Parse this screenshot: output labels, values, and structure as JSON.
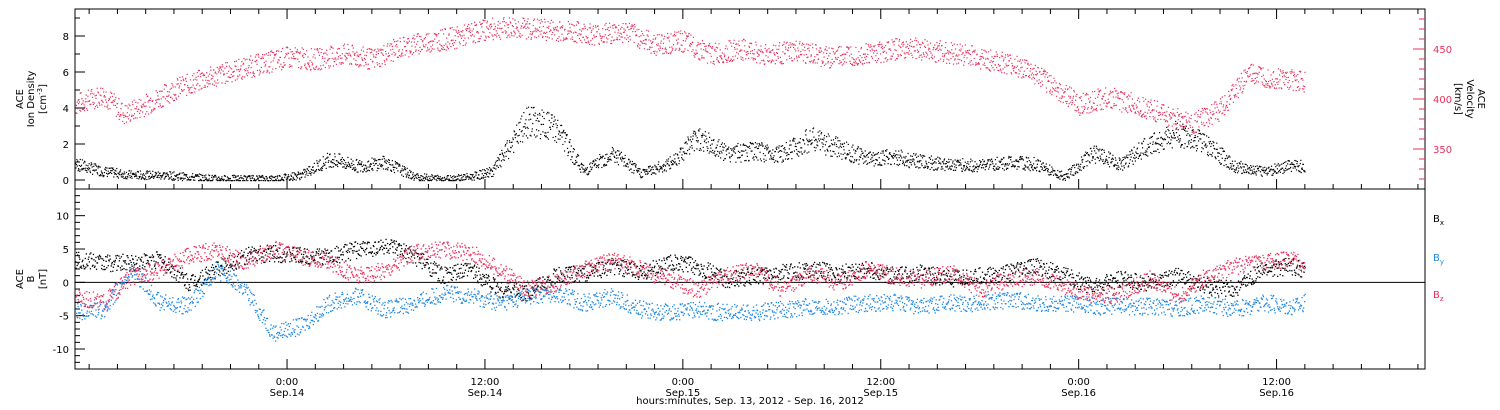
{
  "chart_data": [
    {
      "type": "scatter",
      "panel": "top",
      "left_axis_label_lines": [
        "ACE",
        "Ion Density"
      ],
      "left_axis_units": "[cm",
      "left_axis_units_sup": "-3",
      "left_axis_units_close": "]",
      "right_axis_label_lines": [
        "ACE",
        "Velocity"
      ],
      "right_axis_units": "[km/s]",
      "ylim_left": [
        -0.5,
        9.5
      ],
      "ylim_right": [
        310,
        490
      ],
      "left_ticks": [
        "0",
        "2",
        "4",
        "6",
        "8"
      ],
      "right_ticks": [
        "350",
        "400",
        "450"
      ],
      "colors": {
        "density": "#000000",
        "velocity": "#e8325c"
      },
      "density_profile": [
        {
          "t": 0.0,
          "y": 0.9
        },
        {
          "t": 2.0,
          "y": 0.5
        },
        {
          "t": 4.0,
          "y": 0.3
        },
        {
          "t": 6.0,
          "y": 0.3
        },
        {
          "t": 8.0,
          "y": 0.2
        },
        {
          "t": 10.0,
          "y": 0.1
        },
        {
          "t": 12.0,
          "y": 0.1
        },
        {
          "t": 14.0,
          "y": 0.1
        },
        {
          "t": 16.0,
          "y": 0.3
        },
        {
          "t": 18.0,
          "y": 1.2
        },
        {
          "t": 20.0,
          "y": 0.8
        },
        {
          "t": 22.0,
          "y": 1.0
        },
        {
          "t": 24.0,
          "y": 0.2
        },
        {
          "t": 26.0,
          "y": 0.1
        },
        {
          "t": 28.0,
          "y": 0.2
        },
        {
          "t": 29.5,
          "y": 0.5
        },
        {
          "t": 32.0,
          "y": 3.3
        },
        {
          "t": 34.0,
          "y": 2.9
        },
        {
          "t": 36.0,
          "y": 0.5
        },
        {
          "t": 38.0,
          "y": 1.5
        },
        {
          "t": 40.0,
          "y": 0.4
        },
        {
          "t": 42.0,
          "y": 0.9
        },
        {
          "t": 44.0,
          "y": 2.4
        },
        {
          "t": 46.0,
          "y": 1.5
        },
        {
          "t": 48.0,
          "y": 1.6
        },
        {
          "t": 50.0,
          "y": 1.5
        },
        {
          "t": 52.0,
          "y": 2.3
        },
        {
          "t": 54.0,
          "y": 1.8
        },
        {
          "t": 56.0,
          "y": 1.2
        },
        {
          "t": 58.0,
          "y": 1.3
        },
        {
          "t": 60.0,
          "y": 1.0
        },
        {
          "t": 62.0,
          "y": 0.9
        },
        {
          "t": 64.0,
          "y": 0.8
        },
        {
          "t": 66.0,
          "y": 1.0
        },
        {
          "t": 68.0,
          "y": 0.9
        },
        {
          "t": 70.0,
          "y": 0.2
        },
        {
          "t": 72.0,
          "y": 1.5
        },
        {
          "t": 74.0,
          "y": 0.9
        },
        {
          "t": 76.0,
          "y": 2.0
        },
        {
          "t": 78.0,
          "y": 2.6
        },
        {
          "t": 80.0,
          "y": 2.0
        },
        {
          "t": 82.0,
          "y": 0.8
        },
        {
          "t": 84.0,
          "y": 0.5
        },
        {
          "t": 86.0,
          "y": 0.8
        },
        {
          "t": 87.0,
          "y": 0.8
        }
      ],
      "velocity_profile": [
        {
          "t": 0.0,
          "v": 395
        },
        {
          "t": 2.0,
          "v": 405
        },
        {
          "t": 3.5,
          "v": 385
        },
        {
          "t": 5.0,
          "v": 395
        },
        {
          "t": 7.0,
          "v": 410
        },
        {
          "t": 9.0,
          "v": 420
        },
        {
          "t": 11.0,
          "v": 428
        },
        {
          "t": 13.0,
          "v": 435
        },
        {
          "t": 15.0,
          "v": 442
        },
        {
          "t": 17.0,
          "v": 440
        },
        {
          "t": 19.0,
          "v": 445
        },
        {
          "t": 21.0,
          "v": 440
        },
        {
          "t": 23.0,
          "v": 452
        },
        {
          "t": 25.0,
          "v": 458
        },
        {
          "t": 27.0,
          "v": 462
        },
        {
          "t": 29.0,
          "v": 470
        },
        {
          "t": 31.0,
          "v": 472
        },
        {
          "t": 33.0,
          "v": 470
        },
        {
          "t": 35.0,
          "v": 468
        },
        {
          "t": 37.0,
          "v": 465
        },
        {
          "t": 39.0,
          "v": 468
        },
        {
          "t": 41.0,
          "v": 455
        },
        {
          "t": 43.0,
          "v": 458
        },
        {
          "t": 45.0,
          "v": 445
        },
        {
          "t": 47.0,
          "v": 450
        },
        {
          "t": 49.0,
          "v": 445
        },
        {
          "t": 51.0,
          "v": 448
        },
        {
          "t": 53.0,
          "v": 442
        },
        {
          "t": 55.0,
          "v": 445
        },
        {
          "t": 57.0,
          "v": 448
        },
        {
          "t": 59.0,
          "v": 452
        },
        {
          "t": 61.0,
          "v": 448
        },
        {
          "t": 63.0,
          "v": 445
        },
        {
          "t": 65.0,
          "v": 438
        },
        {
          "t": 67.0,
          "v": 432
        },
        {
          "t": 69.0,
          "v": 415
        },
        {
          "t": 71.0,
          "v": 395
        },
        {
          "t": 73.0,
          "v": 402
        },
        {
          "t": 75.0,
          "v": 395
        },
        {
          "t": 77.0,
          "v": 385
        },
        {
          "t": 79.0,
          "v": 375
        },
        {
          "t": 81.0,
          "v": 390
        },
        {
          "t": 83.0,
          "v": 425
        },
        {
          "t": 85.0,
          "v": 420
        },
        {
          "t": 87.0,
          "v": 418
        }
      ]
    },
    {
      "type": "scatter",
      "panel": "bottom",
      "left_axis_label_lines": [
        "ACE",
        "B"
      ],
      "left_axis_units": "[nT]",
      "ylim": [
        -13,
        14
      ],
      "ticks": [
        "-10",
        "-5",
        "0",
        "5",
        "10"
      ],
      "series": [
        {
          "name": "B",
          "subscript": "x",
          "color": "#000000",
          "profile": [
            {
              "t": 0.0,
              "v": 3.5
            },
            {
              "t": 2.0,
              "v": 3.0
            },
            {
              "t": 4.0,
              "v": 3.0
            },
            {
              "t": 6.0,
              "v": 3.5
            },
            {
              "t": 8.0,
              "v": 0.0
            },
            {
              "t": 10.0,
              "v": 2.0
            },
            {
              "t": 12.0,
              "v": 4.0
            },
            {
              "t": 14.0,
              "v": 4.5
            },
            {
              "t": 16.0,
              "v": 4.0
            },
            {
              "t": 18.0,
              "v": 4.0
            },
            {
              "t": 20.0,
              "v": 5.0
            },
            {
              "t": 22.0,
              "v": 5.5
            },
            {
              "t": 24.0,
              "v": 4.0
            },
            {
              "t": 26.0,
              "v": 1.0
            },
            {
              "t": 28.0,
              "v": 2.0
            },
            {
              "t": 30.0,
              "v": -1.0
            },
            {
              "t": 32.0,
              "v": -1.5
            },
            {
              "t": 34.0,
              "v": 1.0
            },
            {
              "t": 36.0,
              "v": 1.5
            },
            {
              "t": 38.0,
              "v": 2.5
            },
            {
              "t": 40.0,
              "v": 1.5
            },
            {
              "t": 42.0,
              "v": 3.0
            },
            {
              "t": 44.0,
              "v": 2.5
            },
            {
              "t": 46.0,
              "v": 0.5
            },
            {
              "t": 48.0,
              "v": 1.0
            },
            {
              "t": 50.0,
              "v": 1.5
            },
            {
              "t": 52.0,
              "v": 2.0
            },
            {
              "t": 54.0,
              "v": 1.5
            },
            {
              "t": 56.0,
              "v": 2.0
            },
            {
              "t": 58.0,
              "v": 1.0
            },
            {
              "t": 60.0,
              "v": 1.5
            },
            {
              "t": 62.0,
              "v": 0.5
            },
            {
              "t": 64.0,
              "v": 1.0
            },
            {
              "t": 66.0,
              "v": 1.5
            },
            {
              "t": 68.0,
              "v": 2.5
            },
            {
              "t": 70.0,
              "v": 1.0
            },
            {
              "t": 72.0,
              "v": -0.5
            },
            {
              "t": 74.0,
              "v": 0.5
            },
            {
              "t": 76.0,
              "v": 0.0
            },
            {
              "t": 78.0,
              "v": 1.0
            },
            {
              "t": 80.0,
              "v": -0.5
            },
            {
              "t": 82.0,
              "v": -1.0
            },
            {
              "t": 84.0,
              "v": 2.0
            },
            {
              "t": 86.0,
              "v": 2.5
            },
            {
              "t": 87.0,
              "v": 2.0
            }
          ]
        },
        {
          "name": "B",
          "subscript": "y",
          "color": "#1e88e5",
          "profile": [
            {
              "t": 0.0,
              "v": -4.5
            },
            {
              "t": 2.0,
              "v": -4.0
            },
            {
              "t": 4.0,
              "v": 2.0
            },
            {
              "t": 6.0,
              "v": -3.0
            },
            {
              "t": 8.0,
              "v": -3.5
            },
            {
              "t": 10.0,
              "v": 2.0
            },
            {
              "t": 12.0,
              "v": -1.0
            },
            {
              "t": 14.0,
              "v": -7.5
            },
            {
              "t": 16.0,
              "v": -6.5
            },
            {
              "t": 18.0,
              "v": -3.0
            },
            {
              "t": 20.0,
              "v": -2.0
            },
            {
              "t": 22.0,
              "v": -4.0
            },
            {
              "t": 24.0,
              "v": -3.0
            },
            {
              "t": 26.0,
              "v": -1.5
            },
            {
              "t": 28.0,
              "v": -2.0
            },
            {
              "t": 30.0,
              "v": -3.0
            },
            {
              "t": 32.0,
              "v": -2.0
            },
            {
              "t": 34.0,
              "v": -1.5
            },
            {
              "t": 36.0,
              "v": -3.0
            },
            {
              "t": 38.0,
              "v": -2.0
            },
            {
              "t": 40.0,
              "v": -4.0
            },
            {
              "t": 42.0,
              "v": -4.5
            },
            {
              "t": 44.0,
              "v": -4.0
            },
            {
              "t": 46.0,
              "v": -4.5
            },
            {
              "t": 48.0,
              "v": -4.5
            },
            {
              "t": 50.0,
              "v": -4.0
            },
            {
              "t": 52.0,
              "v": -3.5
            },
            {
              "t": 54.0,
              "v": -3.5
            },
            {
              "t": 56.0,
              "v": -3.0
            },
            {
              "t": 58.0,
              "v": -3.0
            },
            {
              "t": 60.0,
              "v": -3.5
            },
            {
              "t": 62.0,
              "v": -3.0
            },
            {
              "t": 64.0,
              "v": -3.0
            },
            {
              "t": 66.0,
              "v": -2.5
            },
            {
              "t": 68.0,
              "v": -3.0
            },
            {
              "t": 70.0,
              "v": -3.0
            },
            {
              "t": 72.0,
              "v": -3.5
            },
            {
              "t": 74.0,
              "v": -3.5
            },
            {
              "t": 76.0,
              "v": -3.5
            },
            {
              "t": 78.0,
              "v": -4.0
            },
            {
              "t": 80.0,
              "v": -3.0
            },
            {
              "t": 82.0,
              "v": -4.0
            },
            {
              "t": 84.0,
              "v": -3.0
            },
            {
              "t": 86.0,
              "v": -3.5
            },
            {
              "t": 87.0,
              "v": -3.0
            }
          ]
        },
        {
          "name": "B",
          "subscript": "z",
          "color": "#e8325c",
          "profile": [
            {
              "t": 0.0,
              "v": -2.0
            },
            {
              "t": 2.0,
              "v": -3.0
            },
            {
              "t": 4.0,
              "v": 1.0
            },
            {
              "t": 6.0,
              "v": 2.0
            },
            {
              "t": 8.0,
              "v": 4.0
            },
            {
              "t": 10.0,
              "v": 5.0
            },
            {
              "t": 12.0,
              "v": 3.0
            },
            {
              "t": 14.0,
              "v": 5.0
            },
            {
              "t": 16.0,
              "v": 4.0
            },
            {
              "t": 18.0,
              "v": 3.0
            },
            {
              "t": 20.0,
              "v": 1.0
            },
            {
              "t": 22.0,
              "v": 2.0
            },
            {
              "t": 24.0,
              "v": 4.5
            },
            {
              "t": 26.0,
              "v": 5.0
            },
            {
              "t": 28.0,
              "v": 4.5
            },
            {
              "t": 30.0,
              "v": 2.0
            },
            {
              "t": 32.0,
              "v": -1.0
            },
            {
              "t": 34.0,
              "v": 0.0
            },
            {
              "t": 36.0,
              "v": 2.0
            },
            {
              "t": 38.0,
              "v": 3.5
            },
            {
              "t": 40.0,
              "v": 2.0
            },
            {
              "t": 42.0,
              "v": 0.5
            },
            {
              "t": 44.0,
              "v": -1.0
            },
            {
              "t": 46.0,
              "v": 1.0
            },
            {
              "t": 48.0,
              "v": 2.0
            },
            {
              "t": 50.0,
              "v": -1.0
            },
            {
              "t": 52.0,
              "v": 1.5
            },
            {
              "t": 54.0,
              "v": 0.0
            },
            {
              "t": 56.0,
              "v": 2.0
            },
            {
              "t": 58.0,
              "v": 1.0
            },
            {
              "t": 60.0,
              "v": 0.5
            },
            {
              "t": 62.0,
              "v": 1.5
            },
            {
              "t": 64.0,
              "v": -1.0
            },
            {
              "t": 66.0,
              "v": 0.5
            },
            {
              "t": 68.0,
              "v": 1.0
            },
            {
              "t": 70.0,
              "v": -0.5
            },
            {
              "t": 72.0,
              "v": -2.0
            },
            {
              "t": 74.0,
              "v": -1.5
            },
            {
              "t": 76.0,
              "v": 0.5
            },
            {
              "t": 78.0,
              "v": -2.0
            },
            {
              "t": 80.0,
              "v": 1.0
            },
            {
              "t": 82.0,
              "v": 2.5
            },
            {
              "t": 84.0,
              "v": 3.0
            },
            {
              "t": 86.0,
              "v": 3.5
            },
            {
              "t": 87.0,
              "v": 2.5
            }
          ]
        }
      ]
    }
  ],
  "time_axis": {
    "span_hours": [
      0,
      95.5
    ],
    "data_end_hours": 87,
    "major_ticks": [
      {
        "t": 15,
        "time": "0:00",
        "day": "Sep.14"
      },
      {
        "t": 29,
        "time": "12:00",
        "day": "Sep.14"
      },
      {
        "t": 43,
        "time": "0:00",
        "day": "Sep.15"
      },
      {
        "t": 57,
        "time": "12:00",
        "day": "Sep.15"
      },
      {
        "t": 71,
        "time": "0:00",
        "day": "Sep.16"
      },
      {
        "t": 85,
        "time": "12:00",
        "day": "Sep.16"
      }
    ],
    "xlabel": "hours:minutes, Sep. 13, 2012 - Sep. 16, 2012"
  }
}
